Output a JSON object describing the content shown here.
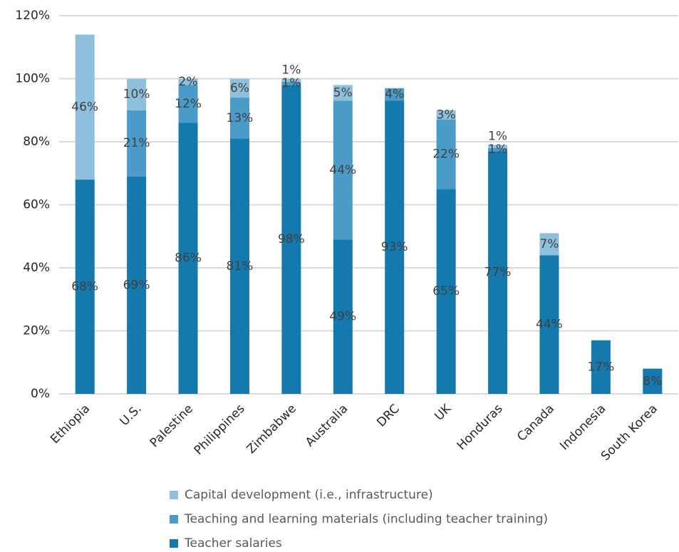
{
  "chart_data": {
    "type": "stacked_bar",
    "categories": [
      "Ethiopia",
      "U.S.",
      "Palestine",
      "Philippines",
      "Zimbabwe",
      "Australia",
      "DRC",
      "UK",
      "Honduras",
      "Canada",
      "Indonesia",
      "South Korea"
    ],
    "series": [
      {
        "name": "Teacher salaries",
        "color": "#1479ad",
        "values": [
          68,
          69,
          86,
          81,
          98,
          49,
          93,
          65,
          77,
          44,
          17,
          8
        ],
        "value_labels": [
          "68%",
          "69%",
          "86%",
          "81%",
          "98%",
          "49%",
          "93%",
          "65%",
          "77%",
          "44%",
          "17%",
          "8%"
        ]
      },
      {
        "name": "Teaching and learning materials (including teacher training)",
        "color": "#4a9bc7",
        "values": [
          null,
          21,
          12,
          13,
          1,
          44,
          4,
          22,
          1,
          null,
          null,
          null
        ],
        "value_labels": [
          null,
          "21%",
          "12%",
          "13%",
          "1%",
          "44%",
          "4%",
          "22%",
          "1%",
          null,
          null,
          null
        ]
      },
      {
        "name": "Capital development (i.e., infrastructure)",
        "color": "#8fc0db",
        "values": [
          46,
          10,
          2,
          6,
          1,
          5,
          null,
          3,
          1,
          7,
          null,
          null
        ],
        "value_labels": [
          "46%",
          "10%",
          "2%",
          "6%",
          "1%",
          "5%",
          null,
          "3%",
          "1%",
          "7%",
          null,
          null
        ]
      }
    ],
    "ylim": [
      0,
      120
    ],
    "yticks": [
      {
        "value": 0,
        "label": "0%"
      },
      {
        "value": 20,
        "label": "20%"
      },
      {
        "value": 40,
        "label": "40%"
      },
      {
        "value": 60,
        "label": "60%"
      },
      {
        "value": 80,
        "label": "80%"
      },
      {
        "value": 100,
        "label": "100%"
      },
      {
        "value": 120,
        "label": "120%"
      }
    ],
    "grid": true,
    "legend": "bottom"
  }
}
